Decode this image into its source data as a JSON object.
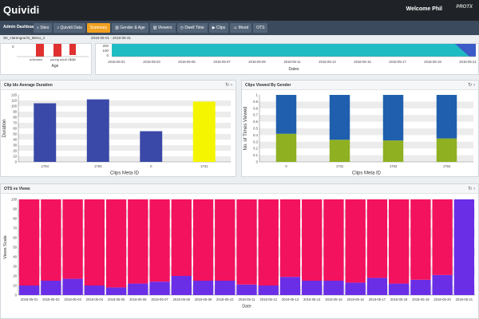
{
  "header": {
    "brand": "Quividi",
    "welcome": "Welcome Phil",
    "logo_text": "PROTX"
  },
  "nav": {
    "label": "Admin Dashboard",
    "tabs": [
      {
        "label": "Sites",
        "icon": "search-icon"
      },
      {
        "label": "Quividi Data",
        "icon": "search-icon"
      },
      {
        "label": "Summary",
        "icon": "",
        "active": true
      },
      {
        "label": "Gender & Age",
        "icon": "chart-icon"
      },
      {
        "label": "Viewers",
        "icon": "chart-icon"
      },
      {
        "label": "Dwell Time",
        "icon": "clock-icon"
      },
      {
        "label": "Clips",
        "icon": "play-icon"
      },
      {
        "label": "Mood",
        "icon": "mood-icon"
      },
      {
        "label": "OTS",
        "icon": ""
      }
    ]
  },
  "subbar": {
    "site": "SK_Harengracht_Menu_4",
    "range": "2018-05-01 - 2018-05-31"
  },
  "top_left": {
    "tick_labels": [
      "unknown",
      "young adult 13-30",
      "30-"
    ],
    "xlabel": "Age"
  },
  "top_right": {
    "yticks": [
      "200",
      "100",
      "0"
    ],
    "xticks": [
      "2018-05-01",
      "2018-05-03",
      "2018-05-05",
      "2018-05-07",
      "2018-05-09",
      "2018-05-11",
      "2018-05-13",
      "2018-05-15",
      "2018-05-17",
      "2018-05-19",
      "2018-05-21"
    ],
    "xlabel": "Dates"
  },
  "panel1": {
    "title": "Clip Ids Average Duration",
    "refresh_icon": "↻",
    "next_icon": "›"
  },
  "panel2": {
    "title": "Clips Viewed By Gender",
    "refresh_icon": "↻",
    "next_icon": "›"
  },
  "panel3": {
    "title": "OTS vs Views",
    "refresh_icon": "↻",
    "next_icon": "›"
  },
  "chart_data": [
    {
      "type": "bar",
      "categories": [
        "1794",
        "1793",
        "0",
        "1731"
      ],
      "values": [
        105,
        112,
        55,
        108
      ],
      "colors": [
        "#3a48a8",
        "#3a48a8",
        "#3a48a8",
        "#f5f500"
      ],
      "ylim": [
        0,
        120
      ],
      "yticks": [
        0,
        10,
        20,
        30,
        40,
        50,
        60,
        70,
        80,
        90,
        100,
        110,
        120
      ],
      "xlabel": "Clips Meta ID",
      "ylabel": "Duration"
    },
    {
      "type": "bar",
      "stacked": true,
      "categories": [
        "0",
        "1731",
        "1793",
        "1794"
      ],
      "series": [
        {
          "values": [
            0.42,
            0.33,
            0.32,
            0.35
          ],
          "color": "#8fb021"
        },
        {
          "values": [
            0.58,
            0.67,
            0.68,
            0.65
          ],
          "color": "#1f5fad"
        }
      ],
      "ylim": [
        0,
        1.0
      ],
      "yticks": [
        0,
        0.1,
        0.2,
        0.3,
        0.4,
        0.5,
        0.6,
        0.7,
        0.8,
        0.9,
        1.0
      ],
      "xlabel": "Clips Meta ID",
      "ylabel": "No. of Times Viewed"
    },
    {
      "type": "bar",
      "stacked": true,
      "categories": [
        "2018-05-01",
        "2018-05-02",
        "2018-05-03",
        "2018-05-04",
        "2018-05-05",
        "2018-05-06",
        "2018-05-07",
        "2018-05-08",
        "2018-05-09",
        "2018-05-10",
        "2018-05-11",
        "2018-05-12",
        "2018-05-13",
        "2018-05-14",
        "2018-05-15",
        "2018-05-16",
        "2018-05-17",
        "2018-05-18",
        "2018-05-19",
        "2018-05-20",
        "2018-05-21"
      ],
      "series": [
        {
          "values": [
            10,
            15,
            17,
            10,
            8,
            12,
            14,
            20,
            15,
            15,
            11,
            10,
            19,
            15,
            15,
            13,
            18,
            12,
            16,
            21,
            100
          ],
          "color": "#6a2ee6"
        },
        {
          "values": [
            90,
            85,
            83,
            90,
            92,
            88,
            86,
            80,
            85,
            85,
            89,
            90,
            81,
            85,
            85,
            87,
            82,
            88,
            84,
            79,
            0
          ],
          "color": "#f2125e"
        }
      ],
      "ylim": [
        0,
        100
      ],
      "yticks": [
        0,
        10,
        20,
        30,
        40,
        50,
        60,
        70,
        80,
        90,
        100
      ],
      "xlabel": "Date",
      "ylabel": "Views Scale"
    }
  ]
}
